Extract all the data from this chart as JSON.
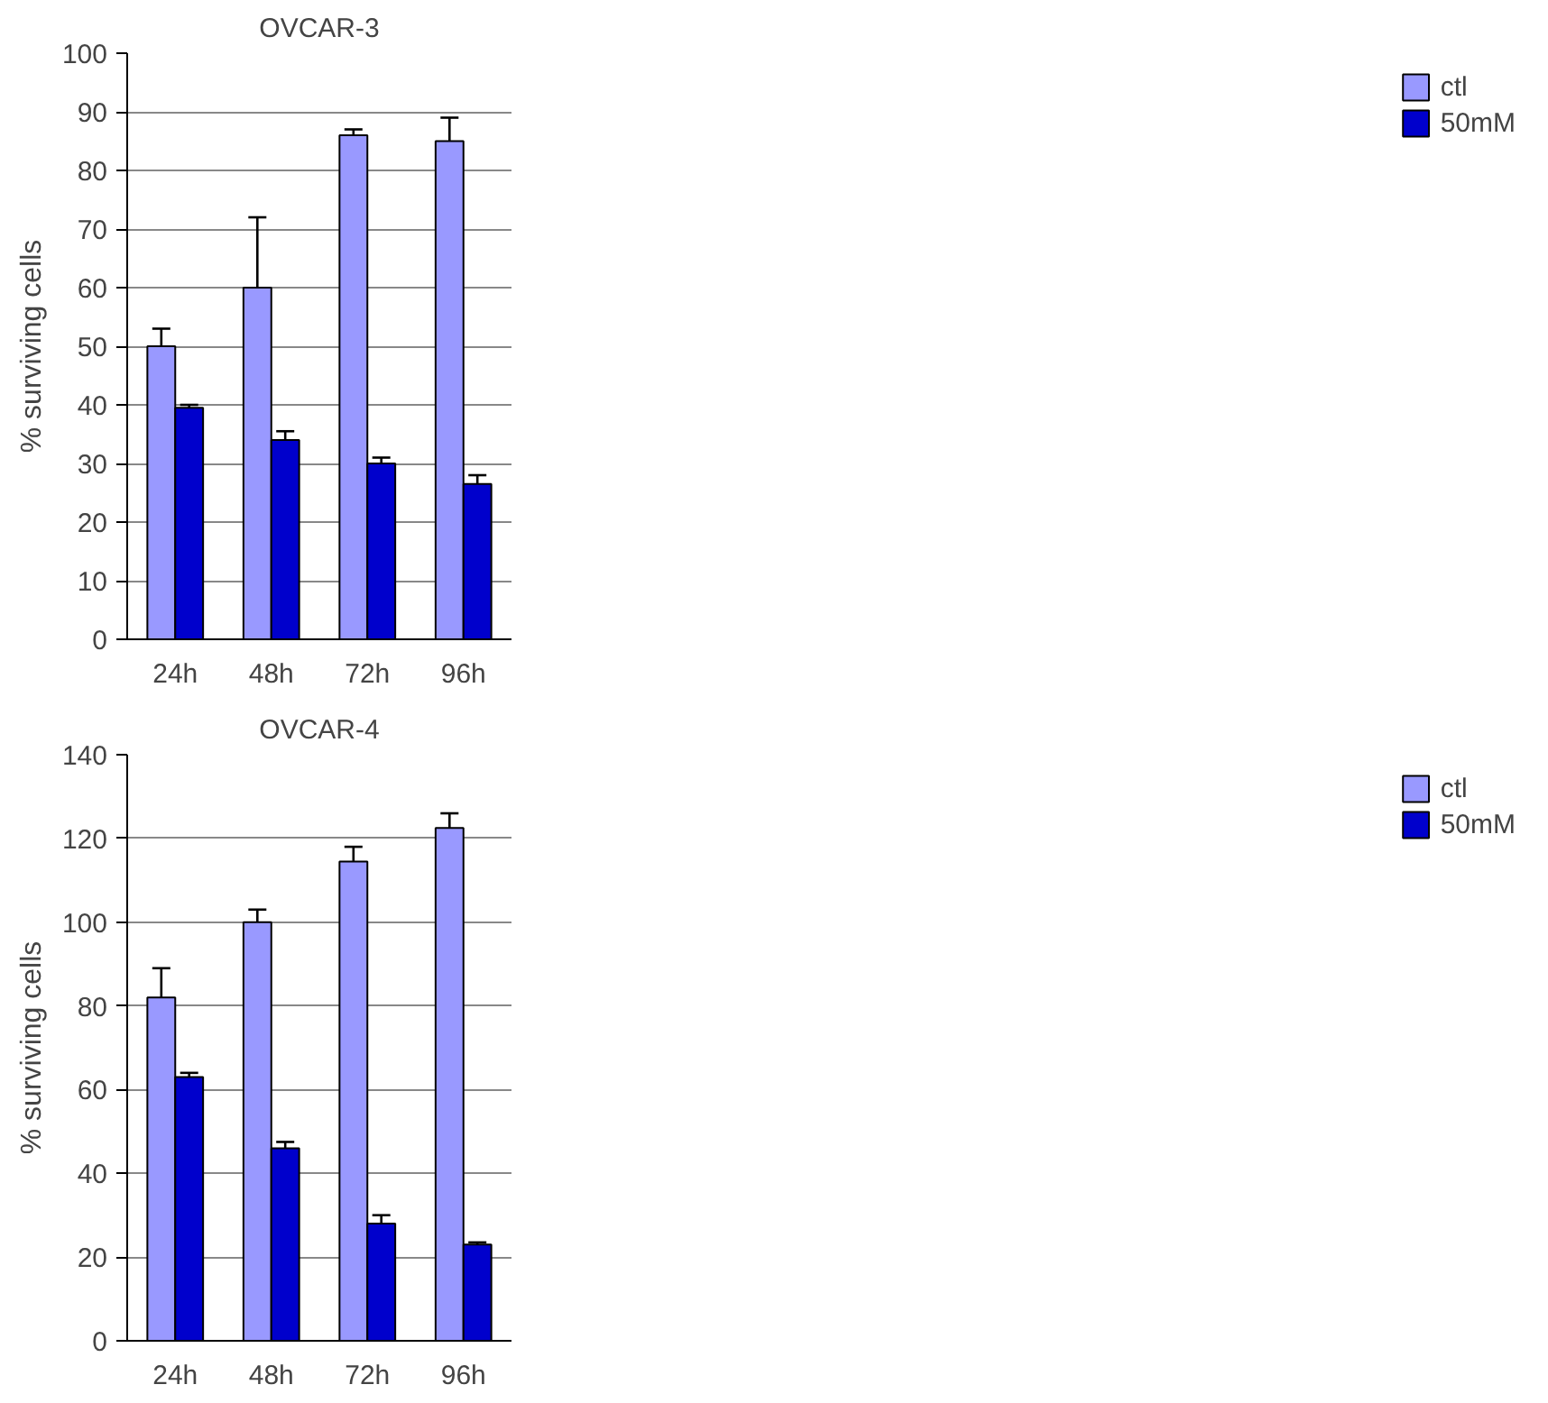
{
  "chart_data": [
    {
      "type": "bar",
      "title": "OVCAR-3",
      "ylabel": "% surviving cells",
      "categories": [
        "24h",
        "48h",
        "72h",
        "96h"
      ],
      "series": [
        {
          "name": "ctl",
          "color": "#9999ff",
          "values": [
            50,
            60,
            86,
            85
          ],
          "errors": [
            3,
            12,
            1,
            4
          ]
        },
        {
          "name": "50mM",
          "color": "#0000cc",
          "values": [
            39.5,
            34,
            30,
            26.5
          ],
          "errors": [
            0.5,
            1.5,
            1,
            1.5
          ]
        }
      ],
      "ylim": [
        0,
        100
      ],
      "yticks": [
        0,
        10,
        20,
        30,
        40,
        50,
        60,
        70,
        80,
        90,
        100
      ],
      "grid": "y",
      "legend": "right"
    },
    {
      "type": "bar",
      "title": "OVCAR-4",
      "ylabel": "% surviving cells",
      "categories": [
        "24h",
        "48h",
        "72h",
        "96h"
      ],
      "series": [
        {
          "name": "ctl",
          "color": "#9999ff",
          "values": [
            82,
            100,
            114.5,
            122.5
          ],
          "errors": [
            7,
            3,
            3.5,
            3.5
          ]
        },
        {
          "name": "50mM",
          "color": "#0000cc",
          "values": [
            63,
            46,
            28,
            23
          ],
          "errors": [
            1,
            1.5,
            2,
            0.5
          ]
        }
      ],
      "ylim": [
        0,
        140
      ],
      "yticks": [
        0,
        20,
        40,
        60,
        80,
        100,
        120,
        140
      ],
      "grid": "y",
      "legend": "right"
    }
  ]
}
